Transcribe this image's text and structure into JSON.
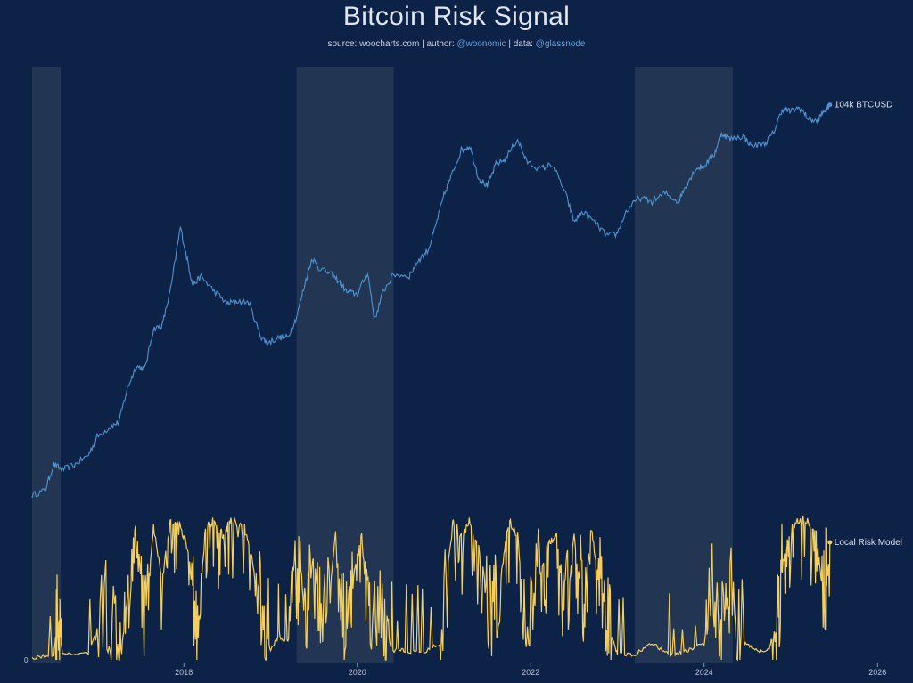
{
  "chart_data": {
    "type": "line",
    "title": "Bitcoin Risk Signal",
    "subtitle": {
      "source_label": "source: ",
      "source": "woocharts.com",
      "sep1": " | ",
      "author_label": "author: ",
      "author": "@woonomic",
      "sep2": " | ",
      "data_label": "data: ",
      "data": "@glassnode"
    },
    "x_ticks": [
      "2018",
      "2020",
      "2022",
      "2024",
      "2026"
    ],
    "x_tick_values": [
      2018,
      2020,
      2022,
      2024,
      2026
    ],
    "xlim": [
      2016.25,
      2026.1
    ],
    "risk_ylim": [
      0,
      1
    ],
    "risk_y_tick": "0",
    "shaded_periods": [
      [
        2016.25,
        2016.58
      ],
      [
        2019.3,
        2020.42
      ],
      [
        2023.2,
        2024.33
      ]
    ],
    "colors": {
      "background": "#0d2247",
      "price": "#4f93cf",
      "risk": "#f4cf5e",
      "shade": "#2a3d58"
    },
    "series": [
      {
        "name": "BTCUSD",
        "end_label": "104k BTCUSD",
        "scale": "log",
        "points": [
          [
            2016.25,
            420
          ],
          [
            2016.4,
            450
          ],
          [
            2016.5,
            650
          ],
          [
            2016.6,
            600
          ],
          [
            2016.75,
            650
          ],
          [
            2016.9,
            740
          ],
          [
            2017.0,
            960
          ],
          [
            2017.15,
            1100
          ],
          [
            2017.25,
            1180
          ],
          [
            2017.35,
            1900
          ],
          [
            2017.45,
            2600
          ],
          [
            2017.55,
            2500
          ],
          [
            2017.65,
            4400
          ],
          [
            2017.75,
            4600
          ],
          [
            2017.85,
            7800
          ],
          [
            2017.96,
            18500
          ],
          [
            2018.05,
            11000
          ],
          [
            2018.1,
            8200
          ],
          [
            2018.2,
            9200
          ],
          [
            2018.35,
            7500
          ],
          [
            2018.5,
            6300
          ],
          [
            2018.6,
            6500
          ],
          [
            2018.75,
            6400
          ],
          [
            2018.88,
            4000
          ],
          [
            2018.96,
            3600
          ],
          [
            2019.1,
            3900
          ],
          [
            2019.2,
            3900
          ],
          [
            2019.3,
            5200
          ],
          [
            2019.4,
            8500
          ],
          [
            2019.48,
            12000
          ],
          [
            2019.55,
            10500
          ],
          [
            2019.7,
            9500
          ],
          [
            2019.8,
            8500
          ],
          [
            2019.88,
            7400
          ],
          [
            2020.0,
            7200
          ],
          [
            2020.12,
            9800
          ],
          [
            2020.2,
            5000
          ],
          [
            2020.3,
            7500
          ],
          [
            2020.42,
            9500
          ],
          [
            2020.6,
            9300
          ],
          [
            2020.7,
            11500
          ],
          [
            2020.82,
            13500
          ],
          [
            2020.9,
            18500
          ],
          [
            2021.0,
            29000
          ],
          [
            2021.1,
            40000
          ],
          [
            2021.2,
            55000
          ],
          [
            2021.3,
            58000
          ],
          [
            2021.4,
            37000
          ],
          [
            2021.5,
            33000
          ],
          [
            2021.6,
            45000
          ],
          [
            2021.7,
            48000
          ],
          [
            2021.85,
            64000
          ],
          [
            2021.95,
            47000
          ],
          [
            2022.1,
            42000
          ],
          [
            2022.25,
            45000
          ],
          [
            2022.4,
            30000
          ],
          [
            2022.5,
            20000
          ],
          [
            2022.6,
            23000
          ],
          [
            2022.75,
            19500
          ],
          [
            2022.87,
            16500
          ],
          [
            2022.99,
            16700
          ],
          [
            2023.1,
            23000
          ],
          [
            2023.25,
            28000
          ],
          [
            2023.4,
            26500
          ],
          [
            2023.55,
            30000
          ],
          [
            2023.7,
            26500
          ],
          [
            2023.8,
            34000
          ],
          [
            2023.9,
            42000
          ],
          [
            2024.0,
            44000
          ],
          [
            2024.12,
            52000
          ],
          [
            2024.2,
            70000
          ],
          [
            2024.3,
            64000
          ],
          [
            2024.45,
            67000
          ],
          [
            2024.55,
            58000
          ],
          [
            2024.7,
            60000
          ],
          [
            2024.8,
            70000
          ],
          [
            2024.9,
            98000
          ],
          [
            2025.0,
            95000
          ],
          [
            2025.1,
            100000
          ],
          [
            2025.2,
            86000
          ],
          [
            2025.3,
            82000
          ],
          [
            2025.38,
            95000
          ],
          [
            2025.45,
            104000
          ]
        ]
      },
      {
        "name": "Local Risk Model",
        "end_label": "Local Risk Model",
        "scale": "linear",
        "points": [
          [
            2016.25,
            0
          ],
          [
            2016.5,
            0.02
          ],
          [
            2016.55,
            0.3
          ],
          [
            2016.6,
            0.02
          ],
          [
            2016.9,
            0.03
          ],
          [
            2017.1,
            0.4
          ],
          [
            2017.25,
            0.15
          ],
          [
            2017.35,
            0.6
          ],
          [
            2017.45,
            1.0
          ],
          [
            2017.55,
            0.3
          ],
          [
            2017.65,
            0.95
          ],
          [
            2017.75,
            0.6
          ],
          [
            2017.85,
            1.0
          ],
          [
            2017.95,
            0.98
          ],
          [
            2018.05,
            0.8
          ],
          [
            2018.15,
            0.2
          ],
          [
            2018.25,
            0.95
          ],
          [
            2018.35,
            1.0
          ],
          [
            2018.45,
            0.9
          ],
          [
            2018.55,
            1.0
          ],
          [
            2018.7,
            0.95
          ],
          [
            2018.8,
            0.7
          ],
          [
            2018.9,
            0.3
          ],
          [
            2019.0,
            0.05
          ],
          [
            2019.1,
            0.15
          ],
          [
            2019.2,
            0.1
          ],
          [
            2019.3,
            0.6
          ],
          [
            2019.4,
            0.3
          ],
          [
            2019.5,
            0.8
          ],
          [
            2019.6,
            0.1
          ],
          [
            2019.75,
            0.9
          ],
          [
            2019.85,
            0.2
          ],
          [
            2019.95,
            0.6
          ],
          [
            2020.05,
            0.9
          ],
          [
            2020.15,
            0.15
          ],
          [
            2020.3,
            0.3
          ],
          [
            2020.4,
            0.05
          ],
          [
            2020.55,
            0.05
          ],
          [
            2020.75,
            0.03
          ],
          [
            2020.95,
            0.1
          ],
          [
            2021.1,
            1.0
          ],
          [
            2021.2,
            0.9
          ],
          [
            2021.3,
            1.0
          ],
          [
            2021.45,
            0.7
          ],
          [
            2021.55,
            0.25
          ],
          [
            2021.65,
            0.6
          ],
          [
            2021.75,
            1.0
          ],
          [
            2021.85,
            0.9
          ],
          [
            2021.95,
            0.2
          ],
          [
            2022.1,
            0.6
          ],
          [
            2022.2,
            0.85
          ],
          [
            2022.3,
            0.9
          ],
          [
            2022.4,
            0.3
          ],
          [
            2022.5,
            0.9
          ],
          [
            2022.6,
            0.4
          ],
          [
            2022.7,
            0.95
          ],
          [
            2022.8,
            0.5
          ],
          [
            2022.9,
            0.2
          ],
          [
            2023.0,
            0.03
          ],
          [
            2023.2,
            0.02
          ],
          [
            2023.4,
            0.1
          ],
          [
            2023.6,
            0.02
          ],
          [
            2023.8,
            0.05
          ],
          [
            2024.0,
            0.1
          ],
          [
            2024.1,
            0.55
          ],
          [
            2024.2,
            0.25
          ],
          [
            2024.3,
            0.5
          ],
          [
            2024.45,
            0.1
          ],
          [
            2024.6,
            0.05
          ],
          [
            2024.75,
            0.05
          ],
          [
            2024.85,
            0.3
          ],
          [
            2024.92,
            0.75
          ],
          [
            2025.0,
            0.95
          ],
          [
            2025.1,
            1.0
          ],
          [
            2025.2,
            0.98
          ],
          [
            2025.3,
            0.9
          ],
          [
            2025.38,
            0.45
          ],
          [
            2025.45,
            0.8
          ]
        ]
      }
    ]
  }
}
